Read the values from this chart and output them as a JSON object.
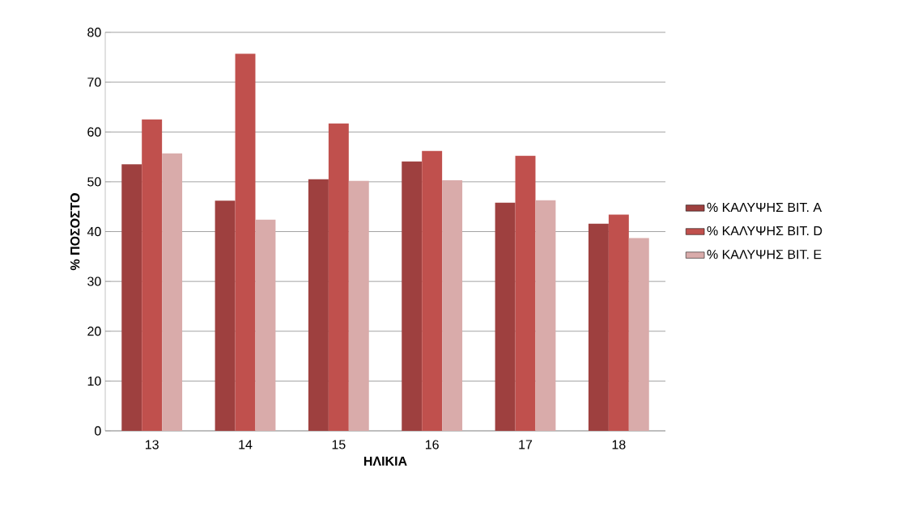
{
  "chart_data": {
    "type": "bar",
    "xlabel": "ΗΛΙΚΙΑ",
    "ylabel": "% ΠΟΣΟΣΤΟ",
    "categories": [
      "13",
      "14",
      "15",
      "16",
      "17",
      "18"
    ],
    "series": [
      {
        "name": "% ΚΑΛΥΨΗΣ ΒΙΤ. Α",
        "color": "#9e403f",
        "values": [
          53.5,
          46.2,
          50.5,
          54.1,
          45.8,
          41.6
        ]
      },
      {
        "name": "% ΚΑΛΥΨΗΣ ΒΙΤ.  D",
        "color": "#c0504d",
        "values": [
          62.5,
          75.7,
          61.7,
          56.2,
          55.2,
          43.4
        ]
      },
      {
        "name": "% ΚΑΛΥΨΗΣ ΒΙΤ.  Ε",
        "color": "#d9abaa",
        "values": [
          55.7,
          42.4,
          50.2,
          50.3,
          46.3,
          38.7
        ]
      }
    ],
    "ylim": [
      0,
      80
    ],
    "yticks": [
      0,
      10,
      20,
      30,
      40,
      50,
      60,
      70,
      80
    ],
    "grid": "y",
    "legend": "right"
  }
}
